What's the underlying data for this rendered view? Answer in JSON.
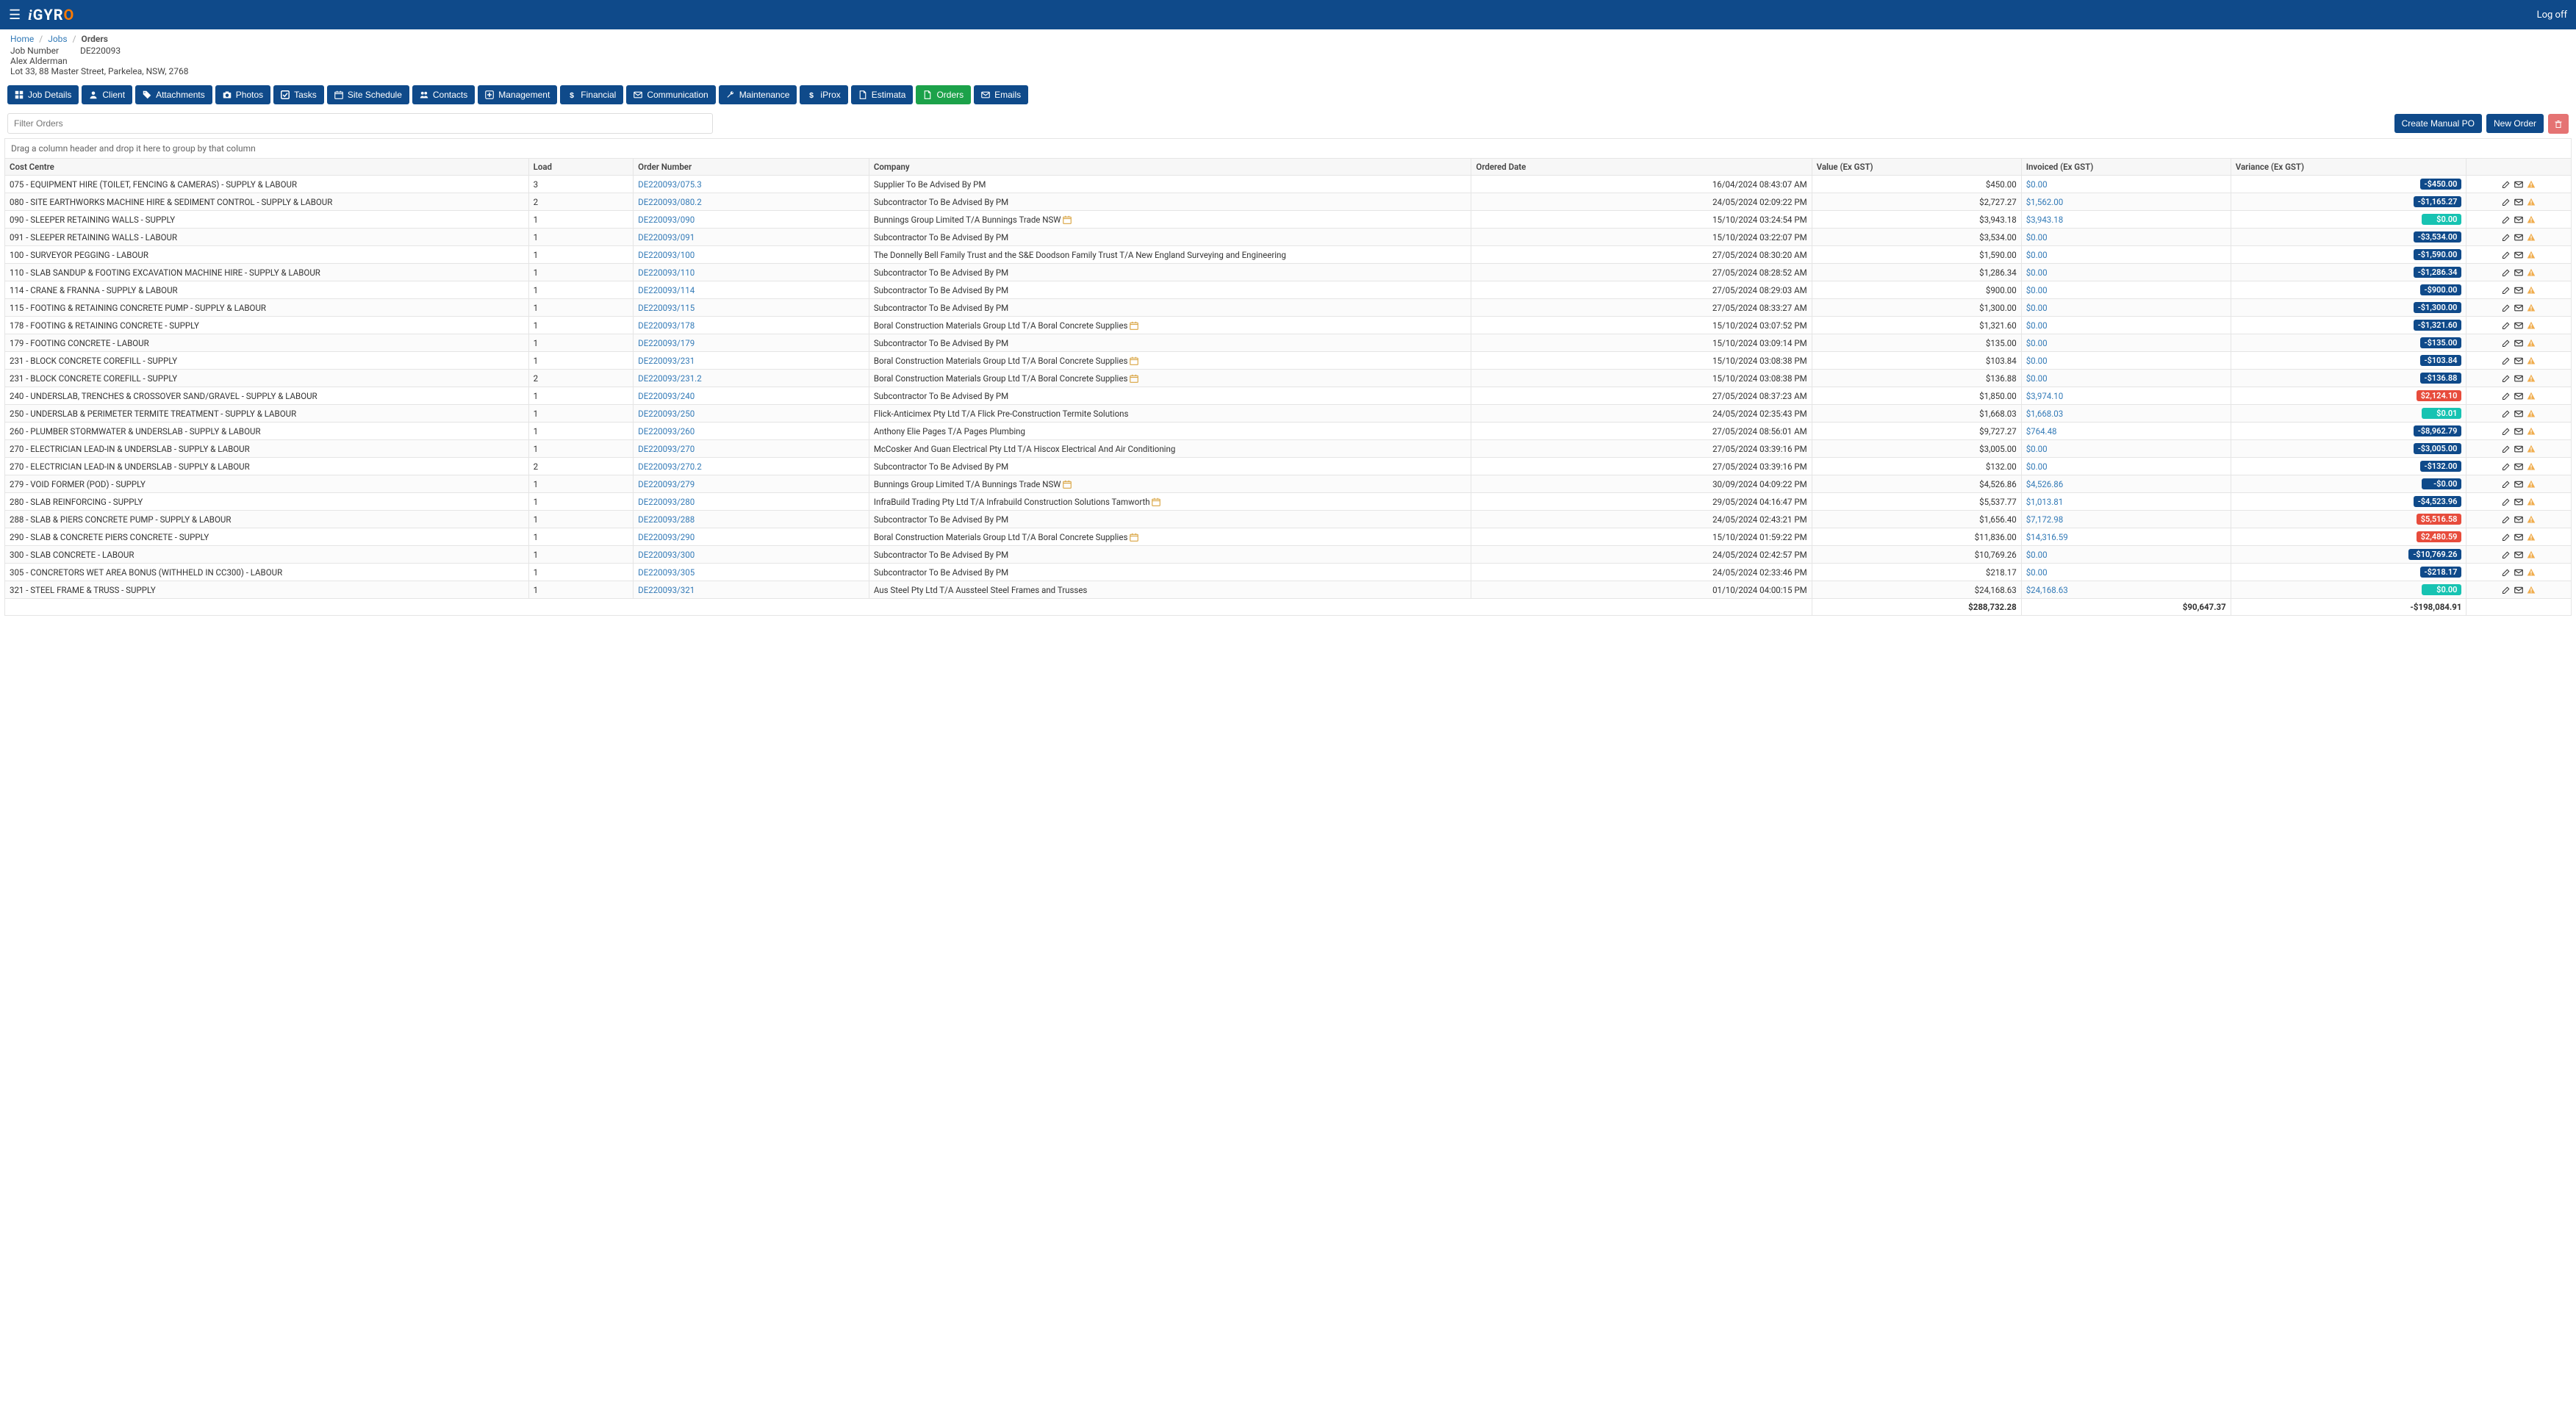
{
  "header": {
    "logo_prefix": "i",
    "logo_main": "GYR",
    "logo_o": "O",
    "logoff": "Log off"
  },
  "breadcrumbs": {
    "home": "Home",
    "jobs": "Jobs",
    "current": "Orders"
  },
  "jobmeta": {
    "jobnum_label": "Job Number",
    "jobnum_value": "DE220093",
    "client": "Alex Alderman",
    "address": "Lot 33, 88 Master Street, Parkelea, NSW, 2768"
  },
  "tabs": [
    {
      "label": "Job Details",
      "icon": "th"
    },
    {
      "label": "Client",
      "icon": "user"
    },
    {
      "label": "Attachments",
      "icon": "tag"
    },
    {
      "label": "Photos",
      "icon": "camera"
    },
    {
      "label": "Tasks",
      "icon": "check"
    },
    {
      "label": "Site Schedule",
      "icon": "calendar"
    },
    {
      "label": "Contacts",
      "icon": "users"
    },
    {
      "label": "Management",
      "icon": "plus"
    },
    {
      "label": "Financial",
      "icon": "dollar"
    },
    {
      "label": "Communication",
      "icon": "mail"
    },
    {
      "label": "Maintenance",
      "icon": "wrench"
    },
    {
      "label": "iProx",
      "icon": "dollar"
    },
    {
      "label": "Estimata",
      "icon": "file"
    },
    {
      "label": "Orders",
      "icon": "file",
      "active": true
    },
    {
      "label": "Emails",
      "icon": "mail"
    }
  ],
  "actions": {
    "filter_placeholder": "Filter Orders",
    "create_po": "Create Manual PO",
    "new_order": "New Order"
  },
  "grid": {
    "group_hint": "Drag a column header and drop it here to group by that column",
    "columns": {
      "cost_centre": "Cost Centre",
      "load": "Load",
      "order_number": "Order Number",
      "company": "Company",
      "ordered_date": "Ordered Date",
      "value": "Value (Ex GST)",
      "invoiced": "Invoiced (Ex GST)",
      "variance": "Variance (Ex GST)"
    },
    "rows": [
      {
        "cost_centre": "075 - EQUIPMENT HIRE (TOILET, FENCING & CAMERAS) - SUPPLY & LABOUR",
        "load": "3",
        "order_number": "DE220093/075.3",
        "company": "Supplier To Be Advised By PM",
        "cal": false,
        "ordered_date": "16/04/2024 08:43:07 AM",
        "value": "$450.00",
        "invoiced": "$0.00",
        "variance": "-$450.00",
        "vclass": "navy"
      },
      {
        "cost_centre": "080 - SITE EARTHWORKS MACHINE HIRE & SEDIMENT CONTROL - SUPPLY & LABOUR",
        "load": "2",
        "order_number": "DE220093/080.2",
        "company": "Subcontractor To Be Advised By PM",
        "cal": false,
        "ordered_date": "24/05/2024 02:09:22 PM",
        "value": "$2,727.27",
        "invoiced": "$1,562.00",
        "variance": "-$1,165.27",
        "vclass": "navy"
      },
      {
        "cost_centre": "090 - SLEEPER RETAINING WALLS - SUPPLY",
        "load": "1",
        "order_number": "DE220093/090",
        "company": "Bunnings Group Limited T/A Bunnings Trade NSW",
        "cal": true,
        "ordered_date": "15/10/2024 03:24:54 PM",
        "value": "$3,943.18",
        "invoiced": "$3,943.18",
        "variance": "$0.00",
        "vclass": "teal"
      },
      {
        "cost_centre": "091 - SLEEPER RETAINING WALLS - LABOUR",
        "load": "1",
        "order_number": "DE220093/091",
        "company": "Subcontractor To Be Advised By PM",
        "cal": false,
        "ordered_date": "15/10/2024 03:22:07 PM",
        "value": "$3,534.00",
        "invoiced": "$0.00",
        "variance": "-$3,534.00",
        "vclass": "navy"
      },
      {
        "cost_centre": "100 - SURVEYOR PEGGING - LABOUR",
        "load": "1",
        "order_number": "DE220093/100",
        "company": "The Donnelly Bell Family Trust and the S&E Doodson Family Trust T/A New England Surveying and Engineering",
        "cal": false,
        "ordered_date": "27/05/2024 08:30:20 AM",
        "value": "$1,590.00",
        "invoiced": "$0.00",
        "variance": "-$1,590.00",
        "vclass": "navy"
      },
      {
        "cost_centre": "110 - SLAB SANDUP & FOOTING EXCAVATION MACHINE HIRE - SUPPLY & LABOUR",
        "load": "1",
        "order_number": "DE220093/110",
        "company": "Subcontractor To Be Advised By PM",
        "cal": false,
        "ordered_date": "27/05/2024 08:28:52 AM",
        "value": "$1,286.34",
        "invoiced": "$0.00",
        "variance": "-$1,286.34",
        "vclass": "navy"
      },
      {
        "cost_centre": "114 - CRANE & FRANNA - SUPPLY & LABOUR",
        "load": "1",
        "order_number": "DE220093/114",
        "company": "Subcontractor To Be Advised By PM",
        "cal": false,
        "ordered_date": "27/05/2024 08:29:03 AM",
        "value": "$900.00",
        "invoiced": "$0.00",
        "variance": "-$900.00",
        "vclass": "navy"
      },
      {
        "cost_centre": "115 - FOOTING & RETAINING CONCRETE PUMP - SUPPLY & LABOUR",
        "load": "1",
        "order_number": "DE220093/115",
        "company": "Subcontractor To Be Advised By PM",
        "cal": false,
        "ordered_date": "27/05/2024 08:33:27 AM",
        "value": "$1,300.00",
        "invoiced": "$0.00",
        "variance": "-$1,300.00",
        "vclass": "navy"
      },
      {
        "cost_centre": "178 - FOOTING & RETAINING CONCRETE - SUPPLY",
        "load": "1",
        "order_number": "DE220093/178",
        "company": "Boral Construction Materials Group Ltd T/A Boral Concrete Supplies",
        "cal": true,
        "ordered_date": "15/10/2024 03:07:52 PM",
        "value": "$1,321.60",
        "invoiced": "$0.00",
        "variance": "-$1,321.60",
        "vclass": "navy"
      },
      {
        "cost_centre": "179 - FOOTING CONCRETE - LABOUR",
        "load": "1",
        "order_number": "DE220093/179",
        "company": "Subcontractor To Be Advised By PM",
        "cal": false,
        "ordered_date": "15/10/2024 03:09:14 PM",
        "value": "$135.00",
        "invoiced": "$0.00",
        "variance": "-$135.00",
        "vclass": "navy"
      },
      {
        "cost_centre": "231 - BLOCK CONCRETE COREFILL - SUPPLY",
        "load": "1",
        "order_number": "DE220093/231",
        "company": "Boral Construction Materials Group Ltd T/A Boral Concrete Supplies",
        "cal": true,
        "ordered_date": "15/10/2024 03:08:38 PM",
        "value": "$103.84",
        "invoiced": "$0.00",
        "variance": "-$103.84",
        "vclass": "navy"
      },
      {
        "cost_centre": "231 - BLOCK CONCRETE COREFILL - SUPPLY",
        "load": "2",
        "order_number": "DE220093/231.2",
        "company": "Boral Construction Materials Group Ltd T/A Boral Concrete Supplies",
        "cal": true,
        "ordered_date": "15/10/2024 03:08:38 PM",
        "value": "$136.88",
        "invoiced": "$0.00",
        "variance": "-$136.88",
        "vclass": "navy"
      },
      {
        "cost_centre": "240 - UNDERSLAB, TRENCHES & CROSSOVER SAND/GRAVEL - SUPPLY & LABOUR",
        "load": "1",
        "order_number": "DE220093/240",
        "company": "Subcontractor To Be Advised By PM",
        "cal": false,
        "ordered_date": "27/05/2024 08:37:23 AM",
        "value": "$1,850.00",
        "invoiced": "$3,974.10",
        "variance": "$2,124.10",
        "vclass": "red"
      },
      {
        "cost_centre": "250 - UNDERSLAB & PERIMETER TERMITE TREATMENT - SUPPLY & LABOUR",
        "load": "1",
        "order_number": "DE220093/250",
        "company": "Flick-Anticimex Pty Ltd T/A Flick Pre-Construction Termite Solutions",
        "cal": false,
        "ordered_date": "24/05/2024 02:35:43 PM",
        "value": "$1,668.03",
        "invoiced": "$1,668.03",
        "variance": "$0.01",
        "vclass": "teal"
      },
      {
        "cost_centre": "260 - PLUMBER STORMWATER & UNDERSLAB - SUPPLY & LABOUR",
        "load": "1",
        "order_number": "DE220093/260",
        "company": "Anthony Elie Pages T/A Pages Plumbing",
        "cal": false,
        "ordered_date": "27/05/2024 08:56:01 AM",
        "value": "$9,727.27",
        "invoiced": "$764.48",
        "variance": "-$8,962.79",
        "vclass": "navy"
      },
      {
        "cost_centre": "270 - ELECTRICIAN LEAD-IN & UNDERSLAB - SUPPLY & LABOUR",
        "load": "1",
        "order_number": "DE220093/270",
        "company": "McCosker And Guan Electrical Pty Ltd T/A Hiscox Electrical And Air Conditioning",
        "cal": false,
        "ordered_date": "27/05/2024 03:39:16 PM",
        "value": "$3,005.00",
        "invoiced": "$0.00",
        "variance": "-$3,005.00",
        "vclass": "navy"
      },
      {
        "cost_centre": "270 - ELECTRICIAN LEAD-IN & UNDERSLAB - SUPPLY & LABOUR",
        "load": "2",
        "order_number": "DE220093/270.2",
        "company": "Subcontractor To Be Advised By PM",
        "cal": false,
        "ordered_date": "27/05/2024 03:39:16 PM",
        "value": "$132.00",
        "invoiced": "$0.00",
        "variance": "-$132.00",
        "vclass": "navy"
      },
      {
        "cost_centre": "279 - VOID FORMER (POD) - SUPPLY",
        "load": "1",
        "order_number": "DE220093/279",
        "company": "Bunnings Group Limited T/A Bunnings Trade NSW",
        "cal": true,
        "ordered_date": "30/09/2024 04:09:22 PM",
        "value": "$4,526.86",
        "invoiced": "$4,526.86",
        "variance": "-$0.00",
        "vclass": "navy"
      },
      {
        "cost_centre": "280 - SLAB REINFORCING - SUPPLY",
        "load": "1",
        "order_number": "DE220093/280",
        "company": "InfraBuild Trading Pty Ltd T/A Infrabuild Construction Solutions Tamworth",
        "cal": true,
        "ordered_date": "29/05/2024 04:16:47 PM",
        "value": "$5,537.77",
        "invoiced": "$1,013.81",
        "variance": "-$4,523.96",
        "vclass": "navy"
      },
      {
        "cost_centre": "288 - SLAB & PIERS CONCRETE PUMP - SUPPLY & LABOUR",
        "load": "1",
        "order_number": "DE220093/288",
        "company": "Subcontractor To Be Advised By PM",
        "cal": false,
        "ordered_date": "24/05/2024 02:43:21 PM",
        "value": "$1,656.40",
        "invoiced": "$7,172.98",
        "variance": "$5,516.58",
        "vclass": "red"
      },
      {
        "cost_centre": "290 - SLAB & CONCRETE PIERS CONCRETE - SUPPLY",
        "load": "1",
        "order_number": "DE220093/290",
        "company": "Boral Construction Materials Group Ltd T/A Boral Concrete Supplies",
        "cal": true,
        "ordered_date": "15/10/2024 01:59:22 PM",
        "value": "$11,836.00",
        "invoiced": "$14,316.59",
        "variance": "$2,480.59",
        "vclass": "red"
      },
      {
        "cost_centre": "300 - SLAB CONCRETE - LABOUR",
        "load": "1",
        "order_number": "DE220093/300",
        "company": "Subcontractor To Be Advised By PM",
        "cal": false,
        "ordered_date": "24/05/2024 02:42:57 PM",
        "value": "$10,769.26",
        "invoiced": "$0.00",
        "variance": "-$10,769.26",
        "vclass": "navy"
      },
      {
        "cost_centre": "305 - CONCRETORS WET AREA BONUS (WITHHELD IN CC300) - LABOUR",
        "load": "1",
        "order_number": "DE220093/305",
        "company": "Subcontractor To Be Advised By PM",
        "cal": false,
        "ordered_date": "24/05/2024 02:33:46 PM",
        "value": "$218.17",
        "invoiced": "$0.00",
        "variance": "-$218.17",
        "vclass": "navy"
      },
      {
        "cost_centre": "321 - STEEL FRAME & TRUSS - SUPPLY",
        "load": "1",
        "order_number": "DE220093/321",
        "company": "Aus Steel Pty Ltd T/A Aussteel Steel Frames and Trusses",
        "cal": false,
        "ordered_date": "01/10/2024 04:00:15 PM",
        "value": "$24,168.63",
        "invoiced": "$24,168.63",
        "variance": "$0.00",
        "vclass": "teal"
      }
    ],
    "totals": {
      "value": "$288,732.28",
      "invoiced": "$90,647.37",
      "variance": "-$198,084.91"
    }
  }
}
